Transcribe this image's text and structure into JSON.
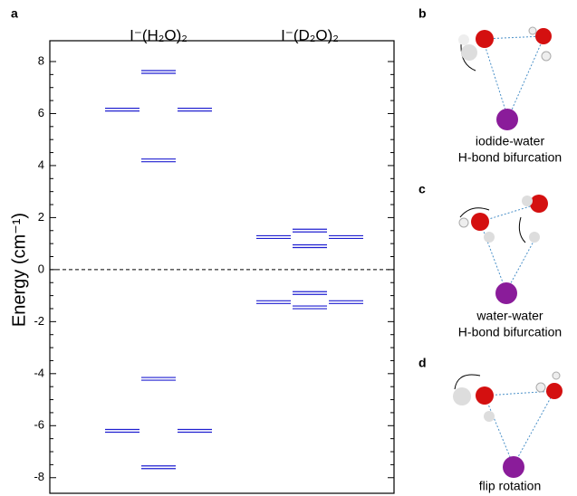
{
  "chart_data": {
    "type": "levels",
    "panel_label": "a",
    "ylabel": "Energy (cm⁻¹)",
    "ylim": [
      -8.6,
      8.8
    ],
    "yticks": [
      -8,
      -6,
      -4,
      -2,
      0,
      2,
      4,
      6,
      8
    ],
    "zero_line": true,
    "color": "#1f1fd0",
    "columns": [
      {
        "name": "I⁻(H₂O)₂",
        "left": [
          6.15,
          -6.2
        ],
        "center": [
          7.6,
          4.2,
          -4.2,
          -7.6
        ],
        "right": [
          6.15,
          -6.2
        ]
      },
      {
        "name": "I⁻(D₂O)₂",
        "left": [
          1.25,
          -1.25
        ],
        "center": [
          1.5,
          0.9,
          -0.9,
          -1.45
        ],
        "right": [
          1.25,
          -1.25
        ]
      }
    ]
  },
  "panels": [
    {
      "label": "b",
      "caption": [
        "iodide-water",
        "H-bond bifurcation"
      ]
    },
    {
      "label": "c",
      "caption": [
        "water-water",
        "H-bond bifurcation"
      ]
    },
    {
      "label": "d",
      "caption": [
        "flip rotation"
      ]
    }
  ]
}
